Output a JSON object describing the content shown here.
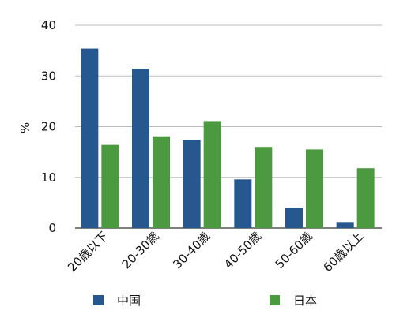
{
  "chart_data": {
    "type": "bar",
    "categories": [
      "20歳以下",
      "20-30歳",
      "30-40歳",
      "40-50歳",
      "50-60歳",
      "60歳以上"
    ],
    "series": [
      {
        "name": "中国",
        "values": [
          35.4,
          31.4,
          17.4,
          9.6,
          4.0,
          1.2
        ],
        "color": "#26578f"
      },
      {
        "name": "日本",
        "values": [
          16.4,
          18.1,
          21.1,
          16.0,
          15.5,
          11.8
        ],
        "color": "#4c9a40"
      }
    ],
    "ylabel": "%",
    "ylim": [
      0,
      40
    ],
    "yticks": [
      0,
      10,
      20,
      30,
      40
    ],
    "grid": true,
    "legend": "bottom"
  }
}
